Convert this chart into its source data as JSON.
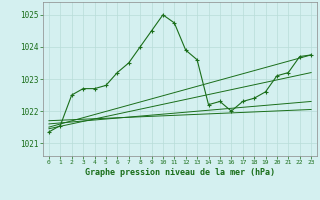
{
  "title": "Graphe pression niveau de la mer (hPa)",
  "background_color": "#d4f0f0",
  "grid_color": "#b8ddd8",
  "line_color": "#1a6e1a",
  "x_ticks": [
    0,
    1,
    2,
    3,
    4,
    5,
    6,
    7,
    8,
    9,
    10,
    11,
    12,
    13,
    14,
    15,
    16,
    17,
    18,
    19,
    20,
    21,
    22,
    23
  ],
  "y_ticks": [
    1021,
    1022,
    1023,
    1024,
    1025
  ],
  "ylim": [
    1020.6,
    1025.4
  ],
  "xlim": [
    -0.5,
    23.5
  ],
  "series1_x": [
    0,
    1,
    2,
    3,
    4,
    5,
    6,
    7,
    8,
    9,
    10,
    11,
    12,
    13,
    14,
    15,
    16,
    17,
    18,
    19,
    20,
    21,
    22,
    23
  ],
  "series1_y": [
    1021.35,
    1021.55,
    1022.5,
    1022.7,
    1022.7,
    1022.8,
    1023.2,
    1023.5,
    1024.0,
    1024.5,
    1025.0,
    1024.75,
    1023.9,
    1023.6,
    1022.2,
    1022.3,
    1022.0,
    1022.3,
    1022.4,
    1022.6,
    1023.1,
    1023.2,
    1023.7,
    1023.75
  ],
  "trend1_x": [
    0,
    23
  ],
  "trend1_y": [
    1021.5,
    1023.75
  ],
  "trend2_x": [
    0,
    23
  ],
  "trend2_y": [
    1021.45,
    1023.2
  ],
  "trend3_x": [
    0,
    23
  ],
  "trend3_y": [
    1021.6,
    1022.3
  ],
  "trend4_x": [
    0,
    23
  ],
  "trend4_y": [
    1021.7,
    1022.05
  ]
}
